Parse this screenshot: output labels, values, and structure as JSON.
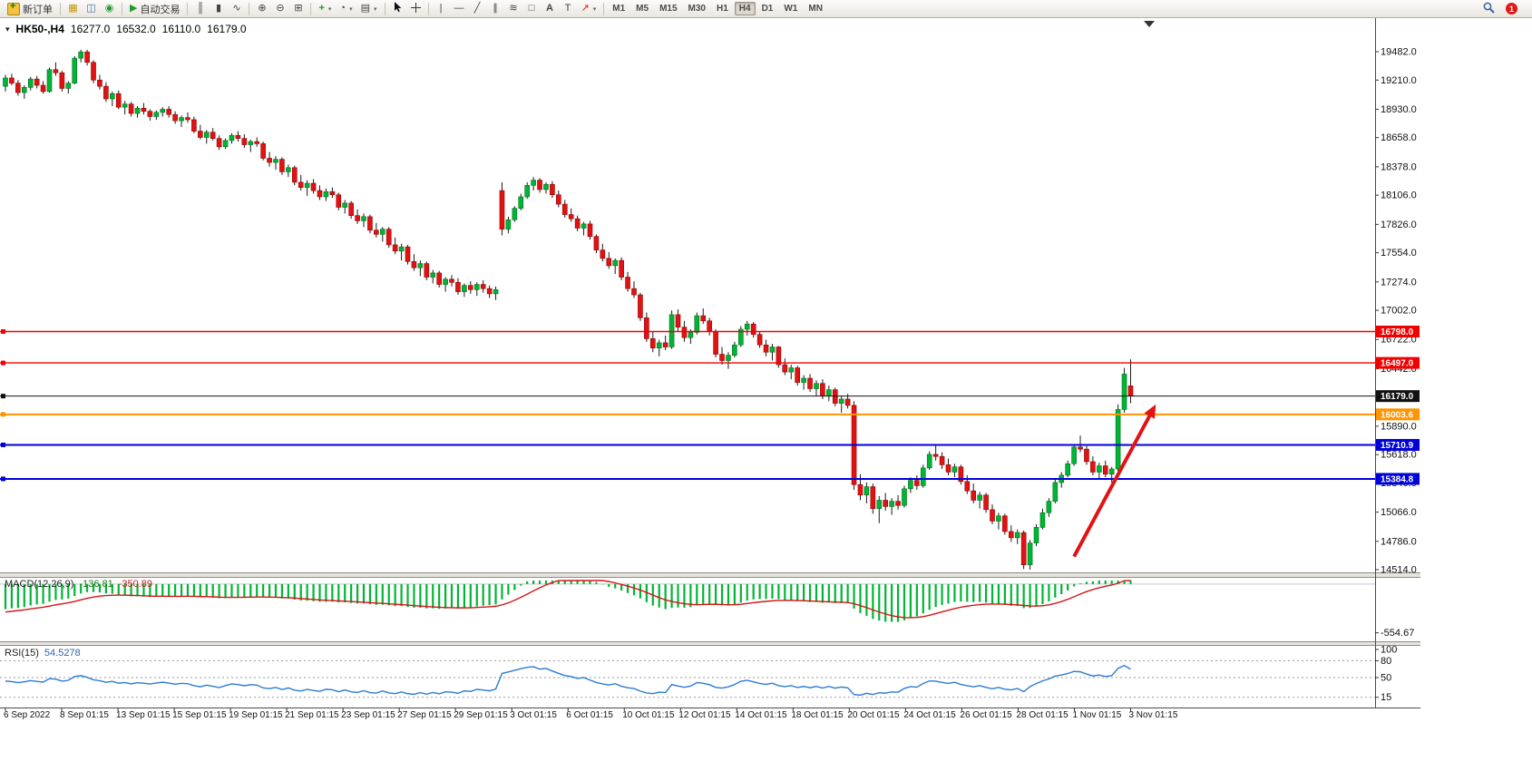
{
  "toolbar": {
    "new_order_label": "新订单",
    "autotrade_label": "自动交易",
    "timeframes": [
      "M1",
      "M5",
      "M15",
      "M30",
      "H1",
      "H4",
      "D1",
      "W1",
      "MN"
    ],
    "active_timeframe": "H4",
    "notification_count": "1",
    "icons": {
      "chart_menu": "▾",
      "market_watch": "▦",
      "data_window": "◫",
      "navigator": "◉",
      "autotrade": "▶",
      "bars": "║",
      "candles": "▮",
      "line": "∿",
      "zoom_in": "⊕",
      "zoom_out": "⊖",
      "tile": "⊞",
      "indicators": "+",
      "periods": "◔",
      "templates": "▤",
      "vline": "|",
      "hline": "—",
      "trendline": "╱",
      "channel": "∥",
      "fibonacci": "≋",
      "shapes": "□",
      "text": "A",
      "label": "T",
      "arrows": "↗"
    }
  },
  "chart": {
    "symbol_period": "HK50-,H4",
    "open": "16277.0",
    "high": "16532.0",
    "low": "16110.0",
    "close": "16179.0"
  },
  "chart_data": {
    "type": "candlestick",
    "symbol": "HK50-",
    "timeframe": "H4",
    "current_ohlc": {
      "open": 16277.0,
      "high": 16532.0,
      "low": 16110.0,
      "close": 16179.0
    },
    "colors": {
      "bull": "#00b535",
      "bull_edge": "#006e1f",
      "bear": "#e31212",
      "bear_edge": "#8f0000",
      "wick": "#1a1a1a"
    },
    "price_axis": [
      19482.0,
      19210.0,
      18930.0,
      18658.0,
      18378.0,
      18106.0,
      17826.0,
      17554.0,
      17274.0,
      17002.0,
      16722.0,
      16442.0,
      16162.0,
      15890.0,
      15618.0,
      15346.0,
      15066.0,
      14786.0,
      14514.0
    ],
    "time_axis": [
      "6 Sep 2022",
      "8 Sep 01:15",
      "13 Sep 01:15",
      "15 Sep 01:15",
      "19 Sep 01:15",
      "21 Sep 01:15",
      "23 Sep 01:15",
      "27 Sep 01:15",
      "29 Sep 01:15",
      "3 Oct 01:15",
      "6 Oct 01:15",
      "10 Oct 01:15",
      "12 Oct 01:15",
      "14 Oct 01:15",
      "18 Oct 01:15",
      "20 Oct 01:15",
      "24 Oct 01:15",
      "26 Oct 01:15",
      "28 Oct 01:15",
      "1 Nov 01:15",
      "3 Nov 01:15"
    ],
    "levels": [
      {
        "price": 16798.0,
        "label": "16798.0",
        "color": "#f00000",
        "width": 1.4
      },
      {
        "price": 16497.0,
        "label": "16497.0",
        "color": "#f00000",
        "width": 1.4
      },
      {
        "price": 16179.0,
        "label": "16179.0",
        "color": "#111111",
        "width": 1,
        "kind": "current-price"
      },
      {
        "price": 16003.6,
        "label": "16003.6",
        "color": "#ff9300",
        "width": 2
      },
      {
        "price": 15710.9,
        "label": "15710.9",
        "color": "#0000d8",
        "width": 2
      },
      {
        "price": 15384.8,
        "label": "15384.8",
        "color": "#0000d8",
        "width": 2
      }
    ],
    "annotation_arrow": {
      "from_index": 170,
      "from_price": 14640,
      "to_index": 183,
      "to_price": 16100,
      "color": "#e31212"
    },
    "indicators": {
      "macd": {
        "title": "MACD(12,26,9)",
        "main": "-136.81",
        "signal": "-350.89",
        "params": [
          12,
          26,
          9
        ],
        "axis_label": "-554.67",
        "histogram_color": "#00b535",
        "signal_color": "#d41616"
      },
      "rsi": {
        "title": "RSI(15)",
        "value": "54.5278",
        "period": 15,
        "axis_labels": [
          100,
          80,
          50,
          15
        ],
        "levels": [
          80,
          50,
          15
        ],
        "line_color": "#2b7cd3"
      }
    },
    "candles": [
      [
        19150,
        19260,
        19100,
        19230
      ],
      [
        19230,
        19270,
        19160,
        19180
      ],
      [
        19180,
        19210,
        19060,
        19090
      ],
      [
        19090,
        19160,
        19030,
        19140
      ],
      [
        19140,
        19240,
        19110,
        19220
      ],
      [
        19220,
        19250,
        19130,
        19160
      ],
      [
        19160,
        19200,
        19080,
        19100
      ],
      [
        19100,
        19330,
        19090,
        19310
      ],
      [
        19310,
        19380,
        19250,
        19280
      ],
      [
        19280,
        19300,
        19100,
        19130
      ],
      [
        19130,
        19200,
        19080,
        19180
      ],
      [
        19180,
        19440,
        19170,
        19420
      ],
      [
        19420,
        19500,
        19380,
        19480
      ],
      [
        19480,
        19500,
        19350,
        19380
      ],
      [
        19380,
        19400,
        19180,
        19210
      ],
      [
        19210,
        19260,
        19120,
        19150
      ],
      [
        19150,
        19190,
        19000,
        19030
      ],
      [
        19030,
        19100,
        18960,
        19080
      ],
      [
        19080,
        19110,
        18930,
        18950
      ],
      [
        18950,
        19010,
        18880,
        18980
      ],
      [
        18980,
        19000,
        18860,
        18890
      ],
      [
        18890,
        18960,
        18850,
        18940
      ],
      [
        18940,
        18990,
        18880,
        18910
      ],
      [
        18910,
        18930,
        18820,
        18860
      ],
      [
        18860,
        18920,
        18830,
        18900
      ],
      [
        18900,
        18950,
        18860,
        18930
      ],
      [
        18930,
        18960,
        18850,
        18880
      ],
      [
        18880,
        18910,
        18790,
        18820
      ],
      [
        18820,
        18870,
        18760,
        18850
      ],
      [
        18850,
        18900,
        18800,
        18830
      ],
      [
        18830,
        18860,
        18700,
        18720
      ],
      [
        18720,
        18780,
        18640,
        18660
      ],
      [
        18660,
        18730,
        18600,
        18710
      ],
      [
        18710,
        18750,
        18630,
        18650
      ],
      [
        18650,
        18680,
        18540,
        18570
      ],
      [
        18570,
        18650,
        18550,
        18630
      ],
      [
        18630,
        18700,
        18600,
        18680
      ],
      [
        18680,
        18720,
        18620,
        18650
      ],
      [
        18650,
        18690,
        18560,
        18590
      ],
      [
        18590,
        18640,
        18520,
        18620
      ],
      [
        18620,
        18660,
        18570,
        18600
      ],
      [
        18600,
        18620,
        18440,
        18460
      ],
      [
        18460,
        18520,
        18380,
        18420
      ],
      [
        18420,
        18480,
        18350,
        18450
      ],
      [
        18450,
        18470,
        18300,
        18330
      ],
      [
        18330,
        18400,
        18280,
        18370
      ],
      [
        18370,
        18390,
        18200,
        18230
      ],
      [
        18230,
        18300,
        18150,
        18180
      ],
      [
        18180,
        18250,
        18100,
        18220
      ],
      [
        18220,
        18260,
        18120,
        18150
      ],
      [
        18150,
        18200,
        18060,
        18090
      ],
      [
        18090,
        18170,
        18050,
        18140
      ],
      [
        18140,
        18180,
        18080,
        18110
      ],
      [
        18110,
        18130,
        17960,
        17990
      ],
      [
        17990,
        18060,
        17930,
        18030
      ],
      [
        18030,
        18050,
        17880,
        17910
      ],
      [
        17910,
        17970,
        17830,
        17860
      ],
      [
        17860,
        17930,
        17800,
        17900
      ],
      [
        17900,
        17920,
        17740,
        17770
      ],
      [
        17770,
        17840,
        17700,
        17730
      ],
      [
        17730,
        17800,
        17660,
        17780
      ],
      [
        17780,
        17800,
        17600,
        17630
      ],
      [
        17630,
        17700,
        17540,
        17570
      ],
      [
        17570,
        17640,
        17480,
        17610
      ],
      [
        17610,
        17630,
        17440,
        17470
      ],
      [
        17470,
        17540,
        17380,
        17410
      ],
      [
        17410,
        17480,
        17330,
        17450
      ],
      [
        17450,
        17470,
        17290,
        17320
      ],
      [
        17320,
        17390,
        17260,
        17360
      ],
      [
        17360,
        17380,
        17220,
        17250
      ],
      [
        17250,
        17320,
        17180,
        17300
      ],
      [
        17300,
        17340,
        17230,
        17270
      ],
      [
        17270,
        17310,
        17150,
        17180
      ],
      [
        17180,
        17260,
        17130,
        17240
      ],
      [
        17240,
        17280,
        17160,
        17200
      ],
      [
        17200,
        17270,
        17140,
        17250
      ],
      [
        17250,
        17290,
        17170,
        17210
      ],
      [
        17210,
        17240,
        17120,
        17160
      ],
      [
        17160,
        17230,
        17100,
        17200
      ],
      [
        18150,
        18230,
        17720,
        17780
      ],
      [
        17780,
        17900,
        17740,
        17870
      ],
      [
        17870,
        18000,
        17850,
        17980
      ],
      [
        17980,
        18120,
        17960,
        18090
      ],
      [
        18090,
        18230,
        18070,
        18200
      ],
      [
        18200,
        18280,
        18150,
        18250
      ],
      [
        18250,
        18270,
        18130,
        18160
      ],
      [
        18160,
        18230,
        18120,
        18210
      ],
      [
        18210,
        18240,
        18080,
        18110
      ],
      [
        18110,
        18150,
        17990,
        18020
      ],
      [
        18020,
        18060,
        17890,
        17920
      ],
      [
        17920,
        17980,
        17850,
        17880
      ],
      [
        17880,
        17910,
        17760,
        17790
      ],
      [
        17790,
        17850,
        17720,
        17830
      ],
      [
        17830,
        17860,
        17680,
        17710
      ],
      [
        17710,
        17730,
        17550,
        17580
      ],
      [
        17580,
        17640,
        17470,
        17500
      ],
      [
        17500,
        17560,
        17400,
        17430
      ],
      [
        17430,
        17500,
        17350,
        17480
      ],
      [
        17480,
        17510,
        17290,
        17320
      ],
      [
        17320,
        17370,
        17180,
        17210
      ],
      [
        17210,
        17280,
        17120,
        17150
      ],
      [
        17150,
        17170,
        16900,
        16930
      ],
      [
        16930,
        16980,
        16700,
        16730
      ],
      [
        16730,
        16800,
        16600,
        16640
      ],
      [
        16640,
        16720,
        16560,
        16690
      ],
      [
        16690,
        16760,
        16620,
        16650
      ],
      [
        16650,
        17000,
        16630,
        16960
      ],
      [
        16960,
        17010,
        16800,
        16840
      ],
      [
        16840,
        16900,
        16700,
        16740
      ],
      [
        16740,
        16820,
        16680,
        16790
      ],
      [
        16790,
        16980,
        16770,
        16950
      ],
      [
        16950,
        17020,
        16870,
        16900
      ],
      [
        16900,
        16930,
        16760,
        16800
      ],
      [
        16800,
        16820,
        16550,
        16580
      ],
      [
        16580,
        16650,
        16480,
        16520
      ],
      [
        16520,
        16600,
        16440,
        16570
      ],
      [
        16570,
        16700,
        16550,
        16670
      ],
      [
        16670,
        16850,
        16650,
        16820
      ],
      [
        16820,
        16900,
        16760,
        16870
      ],
      [
        16870,
        16890,
        16740,
        16770
      ],
      [
        16770,
        16800,
        16640,
        16670
      ],
      [
        16670,
        16720,
        16560,
        16600
      ],
      [
        16600,
        16680,
        16520,
        16650
      ],
      [
        16650,
        16660,
        16450,
        16480
      ],
      [
        16480,
        16540,
        16380,
        16410
      ],
      [
        16410,
        16480,
        16340,
        16450
      ],
      [
        16450,
        16470,
        16280,
        16310
      ],
      [
        16310,
        16380,
        16240,
        16350
      ],
      [
        16350,
        16390,
        16220,
        16250
      ],
      [
        16250,
        16330,
        16180,
        16300
      ],
      [
        16300,
        16340,
        16150,
        16180
      ],
      [
        16180,
        16280,
        16130,
        16240
      ],
      [
        16240,
        16260,
        16080,
        16110
      ],
      [
        16110,
        16180,
        16020,
        16150
      ],
      [
        16150,
        16200,
        16060,
        16090
      ],
      [
        16090,
        16130,
        15280,
        15330
      ],
      [
        15330,
        15430,
        15180,
        15230
      ],
      [
        15230,
        15350,
        15150,
        15310
      ],
      [
        15310,
        15340,
        15050,
        15100
      ],
      [
        15100,
        15220,
        14960,
        15180
      ],
      [
        15180,
        15250,
        15080,
        15120
      ],
      [
        15120,
        15200,
        15040,
        15170
      ],
      [
        15170,
        15230,
        15090,
        15130
      ],
      [
        15130,
        15320,
        15110,
        15290
      ],
      [
        15290,
        15400,
        15250,
        15370
      ],
      [
        15370,
        15420,
        15280,
        15320
      ],
      [
        15320,
        15520,
        15300,
        15490
      ],
      [
        15490,
        15650,
        15470,
        15620
      ],
      [
        15620,
        15720,
        15560,
        15600
      ],
      [
        15600,
        15640,
        15480,
        15520
      ],
      [
        15520,
        15580,
        15420,
        15450
      ],
      [
        15450,
        15530,
        15400,
        15500
      ],
      [
        15500,
        15520,
        15330,
        15360
      ],
      [
        15360,
        15420,
        15240,
        15270
      ],
      [
        15270,
        15340,
        15150,
        15180
      ],
      [
        15180,
        15260,
        15100,
        15230
      ],
      [
        15230,
        15250,
        15060,
        15090
      ],
      [
        15090,
        15140,
        14950,
        14980
      ],
      [
        14980,
        15060,
        14900,
        15030
      ],
      [
        15030,
        15050,
        14850,
        14880
      ],
      [
        14880,
        14940,
        14780,
        14820
      ],
      [
        14820,
        14900,
        14760,
        14870
      ],
      [
        14870,
        14890,
        14520,
        14560
      ],
      [
        14560,
        14800,
        14514,
        14770
      ],
      [
        14770,
        14950,
        14740,
        14920
      ],
      [
        14920,
        15100,
        14900,
        15060
      ],
      [
        15060,
        15200,
        15020,
        15170
      ],
      [
        15170,
        15380,
        15150,
        15350
      ],
      [
        15350,
        15450,
        15300,
        15420
      ],
      [
        15420,
        15560,
        15400,
        15530
      ],
      [
        15530,
        15720,
        15510,
        15690
      ],
      [
        15690,
        15800,
        15640,
        15670
      ],
      [
        15670,
        15700,
        15520,
        15550
      ],
      [
        15550,
        15600,
        15420,
        15450
      ],
      [
        15450,
        15540,
        15380,
        15510
      ],
      [
        15510,
        15560,
        15400,
        15430
      ],
      [
        15430,
        15500,
        15350,
        15480
      ],
      [
        15480,
        16100,
        15460,
        16050
      ],
      [
        16050,
        16450,
        16020,
        16390
      ],
      [
        16277,
        16532,
        16110,
        16179
      ]
    ]
  }
}
